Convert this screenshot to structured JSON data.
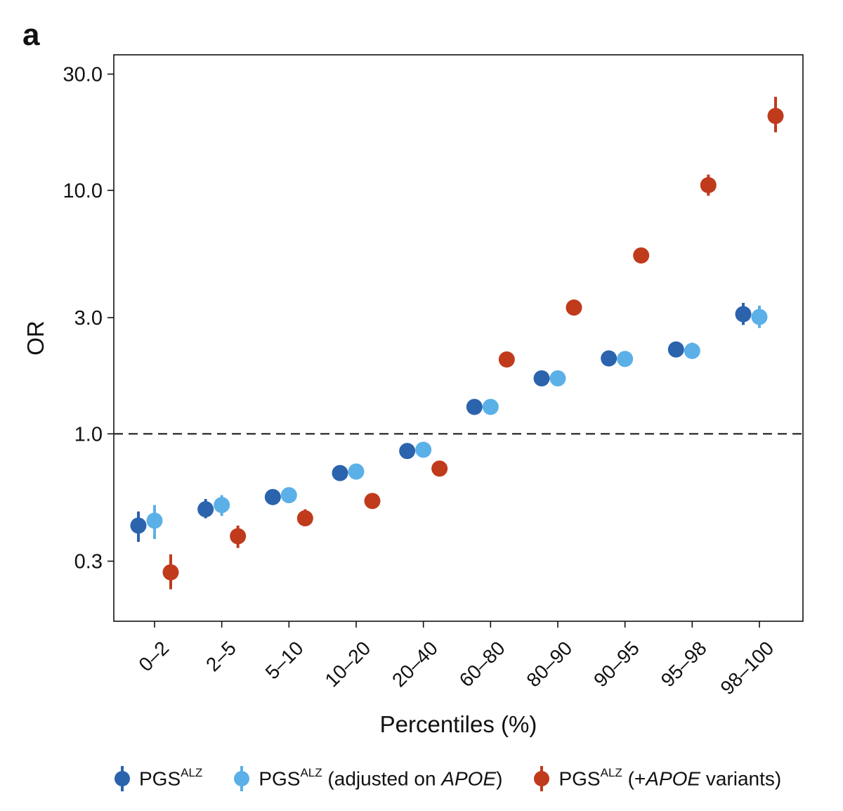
{
  "panel_label": "a",
  "chart_data": {
    "type": "scatter",
    "subtype": "point-errorbar",
    "ylabel": "OR",
    "xlabel": "Percentiles (%)",
    "yscale": "log",
    "ylim": [
      0.17,
      36
    ],
    "yticks": [
      0.3,
      1.0,
      3.0,
      10.0,
      30.0
    ],
    "ytick_labels": [
      "0.3",
      "1.0",
      "3.0",
      "10.0",
      "30.0"
    ],
    "reference_line": {
      "y": 1.0,
      "style": "dashed",
      "color": "#333333"
    },
    "categories": [
      "0–2",
      "2–5",
      "5–10",
      "10–20",
      "20–40",
      "60–80",
      "80–90",
      "90–95",
      "95–98",
      "98–100"
    ],
    "series": [
      {
        "legend_base": "PGS",
        "legend_sup": "ALZ",
        "legend_suffix_pre": "",
        "legend_italic": "",
        "legend_suffix_post": "",
        "color": "#2b63ad",
        "values": [
          0.42,
          0.49,
          0.55,
          0.69,
          0.85,
          1.29,
          1.69,
          2.04,
          2.22,
          3.1
        ],
        "ci_low": [
          0.36,
          0.45,
          0.51,
          0.67,
          0.83,
          1.26,
          1.64,
          1.93,
          2.07,
          2.8
        ],
        "ci_high": [
          0.48,
          0.54,
          0.59,
          0.71,
          0.87,
          1.32,
          1.73,
          2.15,
          2.36,
          3.45
        ]
      },
      {
        "legend_base": "PGS",
        "legend_sup": "ALZ",
        "legend_suffix_pre": " (adjusted on ",
        "legend_italic": "APOE",
        "legend_suffix_post": ")",
        "color": "#5bb0e8",
        "values": [
          0.44,
          0.51,
          0.56,
          0.7,
          0.86,
          1.29,
          1.69,
          2.03,
          2.19,
          3.02
        ],
        "ci_low": [
          0.37,
          0.46,
          0.52,
          0.68,
          0.84,
          1.26,
          1.64,
          1.91,
          2.04,
          2.72
        ],
        "ci_high": [
          0.51,
          0.56,
          0.6,
          0.72,
          0.88,
          1.32,
          1.73,
          2.15,
          2.37,
          3.36
        ]
      },
      {
        "legend_base": "PGS",
        "legend_sup": "ALZ",
        "legend_suffix_pre": " (+",
        "legend_italic": "APOE",
        "legend_suffix_post": " variants)",
        "color": "#c03a1c",
        "values": [
          0.27,
          0.38,
          0.45,
          0.53,
          0.72,
          2.02,
          3.3,
          5.4,
          10.5,
          20.2
        ],
        "ci_low": [
          0.23,
          0.34,
          0.42,
          0.51,
          0.7,
          1.97,
          3.2,
          5.05,
          9.5,
          17.3
        ],
        "ci_high": [
          0.32,
          0.42,
          0.49,
          0.55,
          0.74,
          2.07,
          3.4,
          5.8,
          11.6,
          24.2
        ]
      }
    ]
  }
}
